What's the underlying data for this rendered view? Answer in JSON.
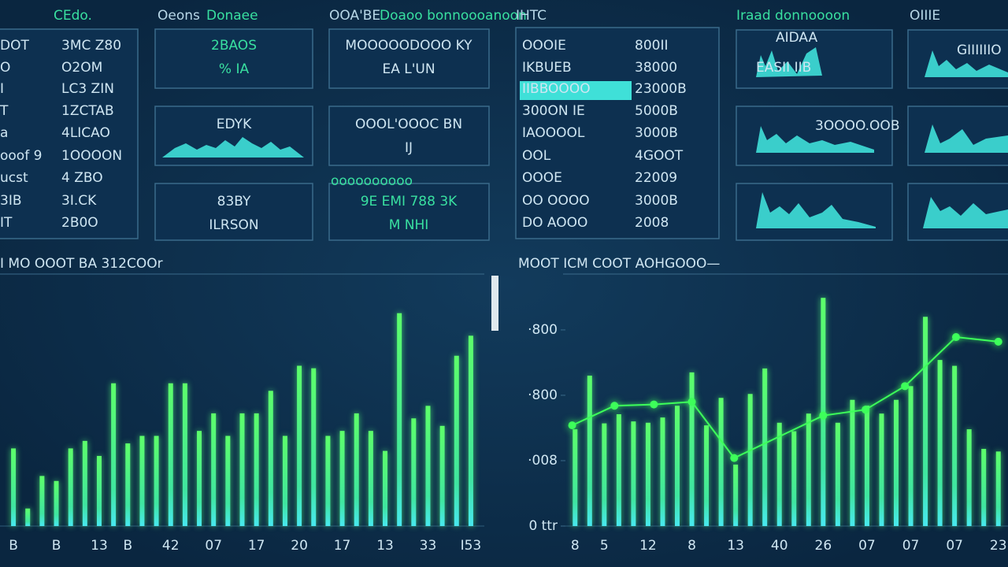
{
  "headers": [
    "CEdo.",
    "Oeons",
    "Donaee",
    "OOA'BE",
    "Doaoo bonnoooanoon",
    "IHTC",
    "Iraad donnoooon",
    "OIIIE"
  ],
  "left_table": {
    "rows": [
      [
        "DOT",
        "3MC Z80"
      ],
      [
        "O",
        "O2OM"
      ],
      [
        "I",
        "LC3 ZIN"
      ],
      [
        "T",
        "1ZCTAB"
      ],
      [
        "a",
        "4LICAO"
      ],
      [
        "ooof 9",
        "1OOOON"
      ],
      [
        "ucst",
        "4 ZBO"
      ],
      [
        "3IB",
        "3I.CK"
      ],
      [
        "IT",
        "2B0O"
      ]
    ]
  },
  "tiles": [
    {
      "title": "2BAOS",
      "subtitle": "%  IA"
    },
    {
      "title": "MOOOOODOOO KY",
      "subtitle": "EA L'UN"
    },
    {
      "title": "EDYK"
    },
    {
      "title": "OOOL'OOOC BN",
      "subtitle": "IJ"
    },
    {
      "title": "83BY",
      "subtitle": "ILRSON"
    },
    {
      "title": "9E EMI 788 3K",
      "subtitle": "M NHI"
    }
  ],
  "tile_caption": "oooooooooo",
  "right_table": {
    "rows": [
      [
        "OOOIE",
        "800II"
      ],
      [
        "IKBUEB",
        "38000"
      ],
      [
        "IIBBOOOO",
        "23000B"
      ],
      [
        "300ON IE",
        "5000B"
      ],
      [
        "IAOOOOL",
        "3000B"
      ],
      [
        "OOL",
        "4GOOT"
      ],
      [
        "OOOE",
        "22009"
      ],
      [
        "OO OOOO",
        "3000B"
      ],
      [
        "DO AOOO",
        "2008"
      ]
    ]
  },
  "spark_tiles": [
    {
      "title": "AIDAA",
      "subtitle": "EASII IIB"
    },
    {
      "title": "GIIIIIIO"
    },
    {
      "title": "3OOOO.OOB"
    }
  ],
  "chart_data": [
    {
      "type": "bar",
      "title": "I MO OOOT BA 312COOr",
      "categories": [
        "B",
        null,
        null,
        "B",
        null,
        null,
        "13",
        null,
        "B",
        null,
        null,
        "42",
        null,
        null,
        "07",
        null,
        null,
        "17",
        null,
        null,
        "20",
        null,
        null,
        "17",
        null,
        null,
        "13",
        null,
        null,
        "33",
        null,
        null,
        "I53"
      ],
      "values": [
        31,
        7,
        20,
        18,
        31,
        34,
        28,
        57,
        33,
        36,
        36,
        57,
        57,
        38,
        45,
        36,
        45,
        45,
        54,
        36,
        64,
        63,
        36,
        38,
        45,
        38,
        30,
        85,
        43,
        48,
        40,
        68,
        76
      ],
      "color": "#4dff5e",
      "ylim": [
        0,
        100
      ]
    },
    {
      "type": "bar",
      "title": "MOOT ICM COOT AOHGOOO—",
      "categories": [
        "8",
        null,
        "5",
        null,
        null,
        "12",
        null,
        null,
        "8",
        null,
        null,
        "13",
        null,
        null,
        "40",
        null,
        null,
        "26",
        null,
        null,
        "07",
        null,
        null,
        "07",
        null,
        null,
        "07",
        null,
        null,
        "23"
      ],
      "values": [
        1.48,
        2.3,
        1.57,
        1.71,
        1.6,
        1.58,
        1.66,
        1.84,
        2.35,
        1.54,
        1.96,
        0.94,
        2.02,
        2.41,
        1.58,
        1.45,
        1.72,
        3.49,
        1.58,
        1.93,
        1.84,
        1.72,
        1.93,
        2.14,
        3.2,
        2.54,
        2.45,
        1.48,
        1.18,
        1.14
      ],
      "color": "#4dff5e",
      "line": {
        "x": [
          -0.2,
          2.7,
          5.4,
          8,
          10.9,
          17,
          19.9,
          22.6,
          26.1,
          29
        ],
        "values": [
          1.54,
          1.84,
          1.86,
          1.9,
          1.04,
          1.69,
          1.78,
          2.14,
          2.89,
          2.82
        ],
        "color": "#3dff5a"
      },
      "ylim": [
        0,
        3.83
      ],
      "yticks": [
        {
          "value": 0,
          "label": "0 ttr"
        },
        {
          "value": 1,
          "label": "·008"
        },
        {
          "value": 2,
          "label": "·800"
        },
        {
          "value": 3,
          "label": "·800"
        }
      ]
    }
  ]
}
